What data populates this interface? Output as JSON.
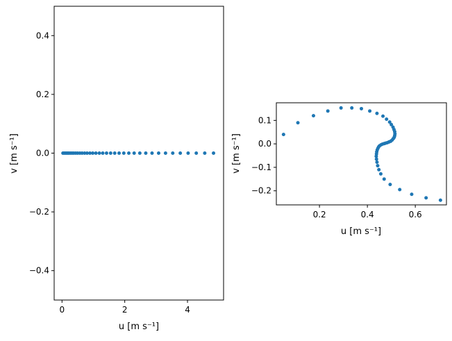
{
  "chart_data": [
    {
      "type": "scatter",
      "xlabel": "u [m s⁻¹]",
      "ylabel": "v [m s⁻¹]",
      "xlim": [
        -0.25,
        5.15
      ],
      "ylim": [
        -0.5,
        0.5
      ],
      "xticks": [
        0,
        2,
        4
      ],
      "xtick_labels": [
        "0",
        "2",
        "4"
      ],
      "yticks": [
        -0.4,
        -0.2,
        0.0,
        0.2,
        0.4
      ],
      "ytick_labels": [
        "−0.4",
        "−0.2",
        "0.0",
        "0.2",
        "0.4"
      ],
      "marker_color": "#1f77b4",
      "grid": false,
      "points": [
        [
          0.03,
          0.0
        ],
        [
          0.07,
          0.0
        ],
        [
          0.11,
          0.0
        ],
        [
          0.15,
          0.0
        ],
        [
          0.19,
          0.0
        ],
        [
          0.23,
          0.0
        ],
        [
          0.28,
          0.0
        ],
        [
          0.33,
          0.0
        ],
        [
          0.38,
          0.0
        ],
        [
          0.44,
          0.0
        ],
        [
          0.5,
          0.0
        ],
        [
          0.57,
          0.0
        ],
        [
          0.64,
          0.0
        ],
        [
          0.72,
          0.0
        ],
        [
          0.8,
          0.0
        ],
        [
          0.89,
          0.0
        ],
        [
          0.98,
          0.0
        ],
        [
          1.08,
          0.0
        ],
        [
          1.19,
          0.0
        ],
        [
          1.3,
          0.0
        ],
        [
          1.42,
          0.0
        ],
        [
          1.55,
          0.0
        ],
        [
          1.68,
          0.0
        ],
        [
          1.82,
          0.0
        ],
        [
          1.97,
          0.0
        ],
        [
          2.13,
          0.0
        ],
        [
          2.3,
          0.0
        ],
        [
          2.48,
          0.0
        ],
        [
          2.67,
          0.0
        ],
        [
          2.87,
          0.0
        ],
        [
          3.08,
          0.0
        ],
        [
          3.3,
          0.0
        ],
        [
          3.53,
          0.0
        ],
        [
          3.77,
          0.0
        ],
        [
          4.02,
          0.0
        ],
        [
          4.28,
          0.0
        ],
        [
          4.55,
          0.0
        ],
        [
          4.83,
          0.0
        ]
      ]
    },
    {
      "type": "scatter",
      "xlabel": "u [m s⁻¹]",
      "ylabel": "v [m s⁻¹]",
      "xlim": [
        0.02,
        0.73
      ],
      "ylim": [
        -0.26,
        0.175
      ],
      "xticks": [
        0.2,
        0.4,
        0.6
      ],
      "xtick_labels": [
        "0.2",
        "0.4",
        "0.6"
      ],
      "yticks": [
        -0.2,
        -0.1,
        0.0,
        0.1
      ],
      "ytick_labels": [
        "−0.2",
        "−0.1",
        "0.0",
        "0.1"
      ],
      "marker_color": "#1f77b4",
      "grid": false,
      "points": [
        [
          0.05,
          0.04
        ],
        [
          0.11,
          0.09
        ],
        [
          0.175,
          0.12
        ],
        [
          0.235,
          0.14
        ],
        [
          0.29,
          0.153
        ],
        [
          0.335,
          0.153
        ],
        [
          0.375,
          0.15
        ],
        [
          0.41,
          0.14
        ],
        [
          0.44,
          0.13
        ],
        [
          0.465,
          0.118
        ],
        [
          0.48,
          0.105
        ],
        [
          0.493,
          0.093
        ],
        [
          0.5,
          0.082
        ],
        [
          0.507,
          0.071
        ],
        [
          0.511,
          0.061
        ],
        [
          0.514,
          0.052
        ],
        [
          0.515,
          0.043
        ],
        [
          0.514,
          0.035
        ],
        [
          0.512,
          0.028
        ],
        [
          0.508,
          0.022
        ],
        [
          0.503,
          0.016
        ],
        [
          0.497,
          0.011
        ],
        [
          0.49,
          0.008
        ],
        [
          0.483,
          0.005
        ],
        [
          0.476,
          0.003
        ],
        [
          0.47,
          0.001
        ],
        [
          0.463,
          -0.001
        ],
        [
          0.457,
          -0.004
        ],
        [
          0.451,
          -0.008
        ],
        [
          0.447,
          -0.013
        ],
        [
          0.444,
          -0.019
        ],
        [
          0.441,
          -0.026
        ],
        [
          0.439,
          -0.034
        ],
        [
          0.438,
          -0.043
        ],
        [
          0.437,
          -0.053
        ],
        [
          0.438,
          -0.065
        ],
        [
          0.44,
          -0.078
        ],
        [
          0.443,
          -0.093
        ],
        [
          0.448,
          -0.11
        ],
        [
          0.456,
          -0.128
        ],
        [
          0.47,
          -0.15
        ],
        [
          0.495,
          -0.173
        ],
        [
          0.535,
          -0.195
        ],
        [
          0.585,
          -0.215
        ],
        [
          0.645,
          -0.23
        ],
        [
          0.705,
          -0.24
        ]
      ]
    }
  ]
}
